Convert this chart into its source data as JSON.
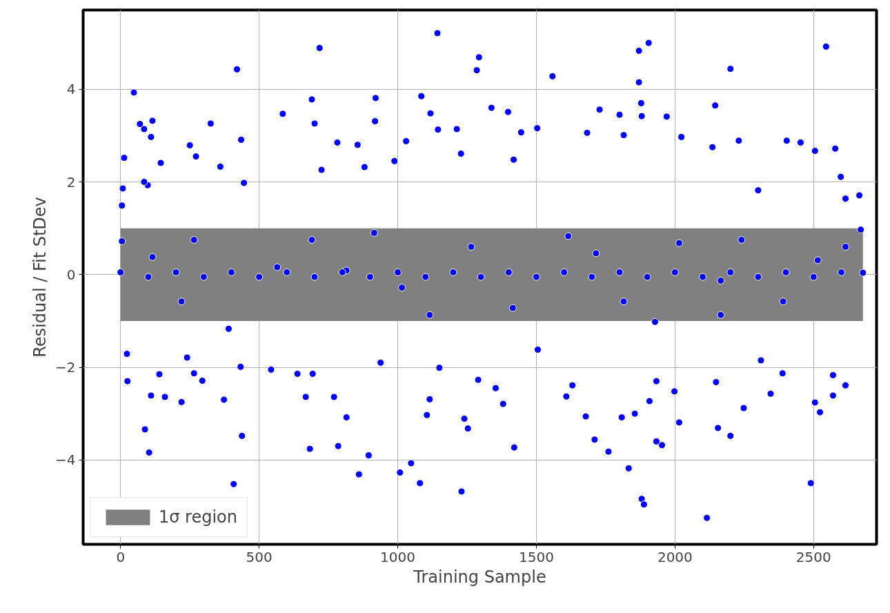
{
  "chart_data": {
    "type": "scatter",
    "xlabel": "Training Sample",
    "ylabel": "Residual / Fit StDev",
    "xlim": [
      -135,
      2727
    ],
    "ylim": [
      -5.82,
      5.71
    ],
    "xticks": [
      0,
      500,
      1000,
      1500,
      2000,
      2500
    ],
    "yticks": [
      {
        "value": -4,
        "label": "−4"
      },
      {
        "value": -2,
        "label": "−2"
      },
      0,
      2,
      4
    ],
    "grid": true,
    "legend": "bottom left",
    "marker": "circle",
    "bands": [
      {
        "axis": "y",
        "from": -1,
        "to": 1,
        "label": "1σ region",
        "color": "#808080"
      }
    ],
    "series": [
      {
        "color": "#0000ff",
        "x": [
          5,
          8,
          13,
          48,
          70,
          85,
          115,
          110,
          145,
          98,
          85,
          250,
          272,
          325,
          360,
          420,
          435,
          445,
          585,
          690,
          700,
          718,
          725,
          782,
          855,
          880,
          920,
          918,
          988,
          1030,
          1085,
          1118,
          1143,
          1145,
          1213,
          1228,
          1293,
          1285,
          1338,
          1398,
          1445,
          1418,
          1503,
          1558,
          1728,
          1683,
          1800,
          1870,
          1870,
          1878,
          1905,
          1815,
          1880,
          1970,
          2023,
          2135,
          2200,
          2230,
          2145,
          2300,
          2403,
          2453,
          2505,
          2545,
          2578,
          2598,
          2615,
          2665,
          2670,
          23,
          25,
          88,
          103,
          110,
          160,
          140,
          220,
          240,
          265,
          295,
          373,
          408,
          433,
          438,
          543,
          638,
          668,
          683,
          693,
          770,
          785,
          815,
          860,
          895,
          938,
          1008,
          1048,
          1080,
          1105,
          1115,
          1150,
          1230,
          1240,
          1253,
          1290,
          1353,
          1380,
          1420,
          1505,
          1608,
          1630,
          1678,
          1710,
          1760,
          1808,
          1833,
          1855,
          1880,
          1888,
          1908,
          1933,
          1933,
          1953,
          1998,
          2015,
          2115,
          2148,
          2155,
          2200,
          2248,
          2310,
          2345,
          2388,
          2490,
          2505,
          2523,
          2570,
          2570,
          2615,
          5,
          265,
          115,
          220,
          390,
          690,
          915,
          1015,
          1115,
          1265,
          1415,
          1615,
          1715,
          1815,
          1928,
          2015,
          2165,
          2240,
          2390,
          2515,
          2615,
          2678,
          565,
          815,
          2165,
          0,
          100,
          200,
          300,
          400,
          500,
          600,
          700,
          800,
          900,
          1000,
          1100,
          1200,
          1300,
          1400,
          1500,
          1600,
          1700,
          1800,
          1900,
          2000,
          2100,
          2200,
          2300,
          2400,
          2500,
          2600
        ],
        "values": [
          1.49,
          1.86,
          2.52,
          3.93,
          3.25,
          3.14,
          3.32,
          2.97,
          2.41,
          1.93,
          2.0,
          2.79,
          2.55,
          3.26,
          2.33,
          4.43,
          2.91,
          1.98,
          3.47,
          3.78,
          3.26,
          4.89,
          2.26,
          2.85,
          2.8,
          2.32,
          3.81,
          3.31,
          2.45,
          2.88,
          3.85,
          3.48,
          5.21,
          3.13,
          3.14,
          2.61,
          4.69,
          4.41,
          3.6,
          3.51,
          3.07,
          2.48,
          3.16,
          4.28,
          3.56,
          3.06,
          3.45,
          4.83,
          4.15,
          3.7,
          5.0,
          3.01,
          3.42,
          3.41,
          2.97,
          2.75,
          4.44,
          2.89,
          3.65,
          1.82,
          2.89,
          2.85,
          2.67,
          4.92,
          2.72,
          2.11,
          1.64,
          1.71,
          0.97,
          -1.71,
          -2.3,
          -3.34,
          -3.84,
          -2.61,
          -2.64,
          -2.15,
          -2.75,
          -1.79,
          -2.13,
          -2.29,
          -2.7,
          -4.52,
          -1.99,
          -3.48,
          -2.05,
          -2.14,
          -2.64,
          -3.76,
          -2.14,
          -2.64,
          -3.7,
          -3.08,
          -4.31,
          -3.9,
          -1.9,
          -4.27,
          -4.07,
          -4.5,
          -3.03,
          -2.69,
          -2.01,
          -4.68,
          -3.11,
          -3.32,
          -2.27,
          -2.45,
          -2.79,
          -3.73,
          -1.62,
          -2.63,
          -2.39,
          -3.06,
          -3.56,
          -3.82,
          -3.08,
          -4.18,
          -3.0,
          -4.84,
          -4.96,
          -2.73,
          -2.3,
          -3.6,
          -3.68,
          -2.52,
          -3.19,
          -5.25,
          -2.32,
          -3.31,
          -3.48,
          -2.88,
          -1.85,
          -2.57,
          -2.13,
          -4.5,
          -2.76,
          -2.97,
          -2.61,
          -2.17,
          -2.39,
          0.72,
          0.75,
          0.38,
          -0.58,
          -1.17,
          0.75,
          0.9,
          -0.28,
          -0.87,
          0.6,
          -0.72,
          0.83,
          0.46,
          -0.58,
          -1.02,
          0.68,
          -0.87,
          0.75,
          -0.58,
          0.31,
          0.6,
          0.04,
          0.16,
          0.09,
          -0.13,
          0.05,
          -0.05,
          0.05,
          -0.05,
          0.05,
          -0.05,
          0.05,
          -0.05,
          0.05,
          -0.05,
          0.05,
          -0.05,
          0.05,
          -0.05,
          0.05,
          -0.05,
          0.05,
          -0.05,
          0.05,
          -0.05,
          0.05,
          -0.05,
          0.05,
          -0.05,
          0.05,
          -0.05,
          0.05
        ]
      }
    ]
  }
}
